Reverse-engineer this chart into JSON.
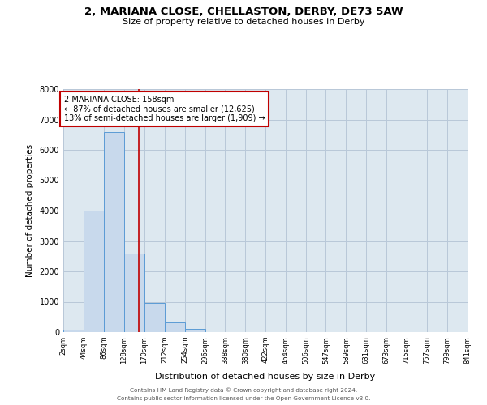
{
  "title_line1": "2, MARIANA CLOSE, CHELLASTON, DERBY, DE73 5AW",
  "title_line2": "Size of property relative to detached houses in Derby",
  "xlabel": "Distribution of detached houses by size in Derby",
  "ylabel": "Number of detached properties",
  "bin_edges": [
    2,
    44,
    86,
    128,
    170,
    212,
    254,
    296,
    338,
    380,
    422,
    464,
    506,
    547,
    589,
    631,
    673,
    715,
    757,
    799,
    841
  ],
  "bar_values": [
    70,
    4000,
    6600,
    2600,
    960,
    330,
    100,
    0,
    0,
    0,
    0,
    0,
    0,
    0,
    0,
    0,
    0,
    0,
    0,
    0
  ],
  "tick_labels": [
    "2sqm",
    "44sqm",
    "86sqm",
    "128sqm",
    "170sqm",
    "212sqm",
    "254sqm",
    "296sqm",
    "338sqm",
    "380sqm",
    "422sqm",
    "464sqm",
    "506sqm",
    "547sqm",
    "589sqm",
    "631sqm",
    "673sqm",
    "715sqm",
    "757sqm",
    "799sqm",
    "841sqm"
  ],
  "property_size": 158,
  "property_label": "2 MARIANA CLOSE: 158sqm",
  "annotation_line1": "← 87% of detached houses are smaller (12,625)",
  "annotation_line2": "13% of semi-detached houses are larger (1,909) →",
  "bar_facecolor": "#c8d9ec",
  "bar_edgecolor": "#5b9bd5",
  "vline_color": "#c00000",
  "annotation_box_edgecolor": "#c00000",
  "ax_facecolor": "#dde8f0",
  "background_color": "#ffffff",
  "grid_color": "#b8c8d8",
  "ylim": [
    0,
    8000
  ],
  "yticks": [
    0,
    1000,
    2000,
    3000,
    4000,
    5000,
    6000,
    7000,
    8000
  ],
  "footer_line1": "Contains HM Land Registry data © Crown copyright and database right 2024.",
  "footer_line2": "Contains public sector information licensed under the Open Government Licence v3.0."
}
